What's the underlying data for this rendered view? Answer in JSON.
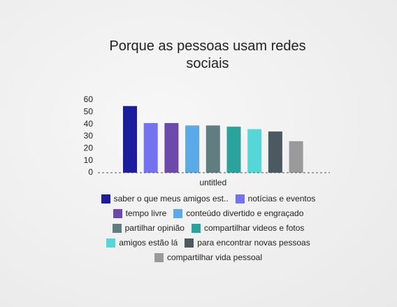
{
  "chart_data": {
    "type": "bar",
    "title": "Porque as pessoas usam redes sociais",
    "categories": [
      "untitled"
    ],
    "series": [
      {
        "name": "saber o que meus amigos est..",
        "color": "#1c1c9e",
        "values": [
          55
        ]
      },
      {
        "name": "notícias e eventos",
        "color": "#7373f2",
        "values": [
          41
        ]
      },
      {
        "name": "tempo livre",
        "color": "#6b4aab",
        "values": [
          41
        ]
      },
      {
        "name": "conteúdo divertido e engraçado",
        "color": "#5aa9e9",
        "values": [
          39
        ]
      },
      {
        "name": "partilhar opinião",
        "color": "#607d80",
        "values": [
          39
        ]
      },
      {
        "name": "compartilhar videos e fotos",
        "color": "#2aa39c",
        "values": [
          38
        ]
      },
      {
        "name": "amigos estão lá",
        "color": "#55d7d7",
        "values": [
          36
        ]
      },
      {
        "name": "para encontrar novas pessoas",
        "color": "#4a5a60",
        "values": [
          34
        ]
      },
      {
        "name": "compartilhar vida pessoal",
        "color": "#9a9a9a",
        "values": [
          26
        ]
      }
    ],
    "ylim": [
      0,
      60
    ],
    "yticks": [
      0,
      10,
      20,
      30,
      40,
      50,
      60
    ],
    "grid": false,
    "legend": "bottom"
  }
}
